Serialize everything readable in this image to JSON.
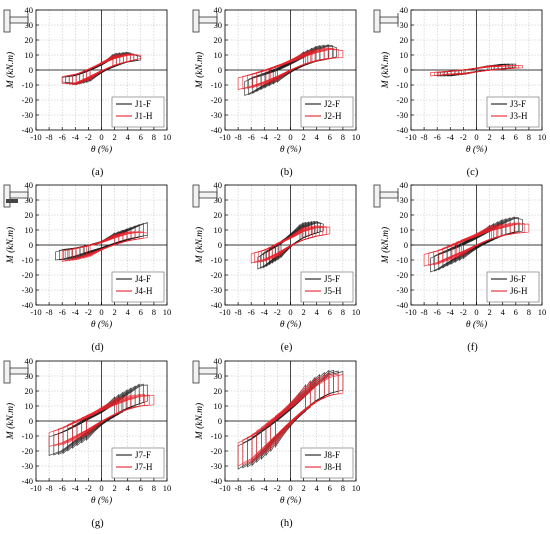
{
  "figure": {
    "xlabel": "θ (%)",
    "ylabel": "M (kN.m)",
    "x_ticks": [
      -10,
      -8,
      -6,
      -4,
      -2,
      0,
      2,
      4,
      6,
      8,
      10
    ],
    "y_ticks": [
      -40,
      -30,
      -20,
      -10,
      0,
      10,
      20,
      30,
      40
    ],
    "colors": {
      "F": "#1a1a1a",
      "H": "#e8212a",
      "axis": "#000000",
      "grid": "#b9b9b9"
    }
  },
  "chart_data": [
    {
      "type": "line",
      "panel_label": "(a)",
      "xlim": [
        -10,
        10
      ],
      "ylim": [
        -40,
        40
      ],
      "grid": true,
      "legend": "bottom-right",
      "series": [
        {
          "name": "J1-F",
          "envelope": {
            "x": [
              -6,
              -4,
              -2,
              0,
              2,
              4,
              6
            ],
            "y_pos": [
              -4,
              -2,
              2,
              6,
              11,
              12,
              9
            ],
            "y_neg": [
              -8,
              -10,
              -8,
              -4,
              0,
              4,
              6
            ]
          }
        },
        {
          "name": "J1-H",
          "envelope": {
            "x": [
              -6,
              -4,
              -2,
              0,
              2,
              4,
              6
            ],
            "y_pos": [
              -3,
              -1,
              3,
              7,
              10,
              11,
              10
            ],
            "y_neg": [
              -9,
              -10,
              -7,
              -3,
              1,
              4,
              7
            ]
          }
        }
      ]
    },
    {
      "type": "line",
      "panel_label": "(b)",
      "xlim": [
        -10,
        10
      ],
      "ylim": [
        -40,
        40
      ],
      "grid": true,
      "legend": "bottom-right",
      "series": [
        {
          "name": "J2-F",
          "envelope": {
            "x": [
              -7,
              -6,
              -4,
              -2,
              0,
              2,
              4,
              6,
              7
            ],
            "y_pos": [
              -5,
              -2,
              1,
              4,
              8,
              12,
              16,
              17,
              15
            ],
            "y_neg": [
              -17,
              -16,
              -12,
              -8,
              -4,
              0,
              3,
              5,
              7
            ]
          }
        },
        {
          "name": "J2-H",
          "envelope": {
            "x": [
              -8,
              -6,
              -4,
              -2,
              0,
              2,
              4,
              6,
              8
            ],
            "y_pos": [
              -3,
              0,
              3,
              6,
              9,
              12,
              14,
              15,
              13
            ],
            "y_neg": [
              -13,
              -12,
              -10,
              -7,
              -3,
              1,
              4,
              6,
              7
            ]
          }
        }
      ]
    },
    {
      "type": "line",
      "panel_label": "(c)",
      "xlim": [
        -10,
        10
      ],
      "ylim": [
        -40,
        40
      ],
      "grid": true,
      "legend": "bottom-right",
      "series": [
        {
          "name": "J3-F",
          "envelope": {
            "x": [
              -6,
              -4,
              -2,
              0,
              2,
              4,
              6
            ],
            "y_pos": [
              -1,
              0,
              1,
              2,
              3,
              4,
              4
            ],
            "y_neg": [
              -4,
              -4,
              -3,
              -2,
              -1,
              0,
              1
            ]
          }
        },
        {
          "name": "J3-H",
          "envelope": {
            "x": [
              -7,
              -4,
              -2,
              0,
              2,
              4,
              7
            ],
            "y_pos": [
              -1,
              0,
              1,
              2,
              3,
              3,
              3
            ],
            "y_neg": [
              -4,
              -3,
              -3,
              -2,
              -1,
              0,
              1
            ]
          }
        }
      ]
    },
    {
      "type": "line",
      "panel_label": "(d)",
      "xlim": [
        -10,
        10
      ],
      "ylim": [
        -40,
        40
      ],
      "grid": true,
      "legend": "bottom-right",
      "series": [
        {
          "name": "J4-F",
          "envelope": {
            "x": [
              -7,
              -6,
              -4,
              -2,
              0,
              2,
              4,
              6,
              7
            ],
            "y_pos": [
              -3,
              -1,
              0,
              2,
              4,
              8,
              11,
              14,
              15
            ],
            "y_neg": [
              -10,
              -10,
              -9,
              -7,
              -5,
              -2,
              1,
              3,
              4
            ]
          }
        },
        {
          "name": "J4-H",
          "envelope": {
            "x": [
              -6,
              -4,
              -2,
              0,
              2,
              4,
              6,
              7
            ],
            "y_pos": [
              -2,
              0,
              2,
              4,
              7,
              9,
              9,
              8
            ],
            "y_neg": [
              -11,
              -10,
              -8,
              -5,
              -2,
              1,
              3,
              4
            ]
          }
        }
      ]
    },
    {
      "type": "line",
      "panel_label": "(e)",
      "xlim": [
        -10,
        10
      ],
      "ylim": [
        -40,
        40
      ],
      "grid": true,
      "legend": "bottom-right",
      "series": [
        {
          "name": "J5-F",
          "envelope": {
            "x": [
              -5,
              -4,
              -2,
              0,
              2,
              4,
              5
            ],
            "y_pos": [
              -6,
              -2,
              4,
              10,
              15,
              16,
              14
            ],
            "y_neg": [
              -16,
              -15,
              -10,
              -4,
              2,
              6,
              8
            ]
          }
        },
        {
          "name": "J5-H",
          "envelope": {
            "x": [
              -6,
              -4,
              -2,
              0,
              2,
              4,
              6
            ],
            "y_pos": [
              -4,
              -1,
              4,
              8,
              12,
              13,
              12
            ],
            "y_neg": [
              -12,
              -11,
              -8,
              -3,
              1,
              4,
              6
            ]
          }
        }
      ]
    },
    {
      "type": "line",
      "panel_label": "(f)",
      "xlim": [
        -10,
        10
      ],
      "ylim": [
        -40,
        40
      ],
      "grid": true,
      "legend": "bottom-right",
      "series": [
        {
          "name": "J6-F",
          "envelope": {
            "x": [
              -7,
              -6,
              -4,
              -2,
              0,
              2,
              4,
              6,
              7
            ],
            "y_pos": [
              -6,
              -3,
              1,
              5,
              9,
              13,
              17,
              19,
              17
            ],
            "y_neg": [
              -18,
              -17,
              -13,
              -9,
              -5,
              -1,
              3,
              6,
              7
            ]
          }
        },
        {
          "name": "J6-H",
          "envelope": {
            "x": [
              -8,
              -6,
              -4,
              -2,
              0,
              2,
              4,
              6,
              8
            ],
            "y_pos": [
              -4,
              -1,
              3,
              7,
              10,
              13,
              14,
              15,
              14
            ],
            "y_neg": [
              -14,
              -13,
              -10,
              -7,
              -3,
              1,
              4,
              6,
              7
            ]
          }
        }
      ]
    },
    {
      "type": "line",
      "panel_label": "(g)",
      "xlim": [
        -10,
        10
      ],
      "ylim": [
        -40,
        40
      ],
      "grid": true,
      "legend": "bottom-right",
      "series": [
        {
          "name": "J7-F",
          "envelope": {
            "x": [
              -8,
              -6,
              -4,
              -2,
              0,
              2,
              4,
              6,
              7
            ],
            "y_pos": [
              -7,
              -3,
              2,
              7,
              11,
              16,
              21,
              25,
              24
            ],
            "y_neg": [
              -23,
              -22,
              -17,
              -12,
              -6,
              -1,
              4,
              8,
              10
            ]
          }
        },
        {
          "name": "J7-H",
          "envelope": {
            "x": [
              -8,
              -6,
              -4,
              -2,
              0,
              2,
              4,
              6,
              8
            ],
            "y_pos": [
              -5,
              -1,
              4,
              8,
              12,
              15,
              17,
              18,
              17
            ],
            "y_neg": [
              -17,
              -16,
              -13,
              -9,
              -4,
              1,
              5,
              8,
              9
            ]
          }
        }
      ]
    },
    {
      "type": "line",
      "panel_label": "(h)",
      "xlim": [
        -10,
        10
      ],
      "ylim": [
        -40,
        40
      ],
      "grid": true,
      "legend": "bottom-right",
      "series": [
        {
          "name": "J8-F",
          "envelope": {
            "x": [
              -8,
              -6,
              -4,
              -2,
              0,
              2,
              4,
              6,
              8
            ],
            "y_pos": [
              -12,
              -6,
              2,
              9,
              16,
              23,
              30,
              34,
              33
            ],
            "y_neg": [
              -32,
              -30,
              -24,
              -16,
              -8,
              0,
              8,
              14,
              17
            ]
          }
        },
        {
          "name": "J8-H",
          "envelope": {
            "x": [
              -8,
              -6,
              -4,
              -2,
              0,
              2,
              4,
              6,
              8
            ],
            "y_pos": [
              -10,
              -4,
              3,
              10,
              17,
              23,
              29,
              32,
              31
            ],
            "y_neg": [
              -30,
              -28,
              -22,
              -15,
              -7,
              1,
              8,
              13,
              15
            ]
          }
        }
      ]
    }
  ]
}
